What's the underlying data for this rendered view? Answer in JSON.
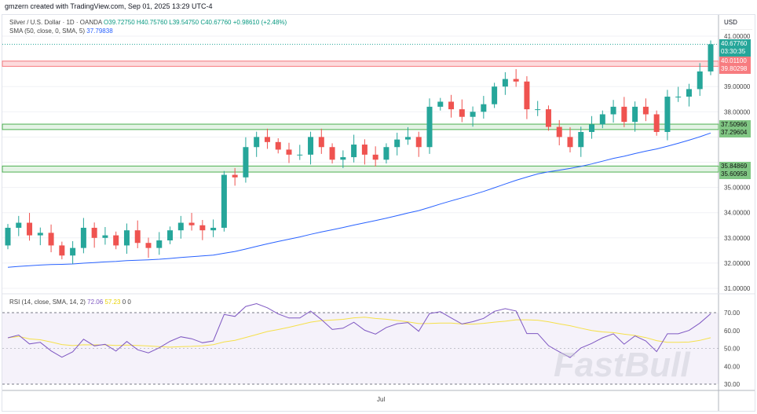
{
  "header": {
    "credit": "gmzern created with TradingView.com, Sep 01, 2025 13:29 UTC-4"
  },
  "legend": {
    "symbol": "Silver / U.S. Dollar · 1D · OANDA",
    "open": "O39.72750",
    "high": "H40.75760",
    "low": "L39.54750",
    "close": "C40.67760",
    "change": "+0.98610 (+2.48%)",
    "sma_label": "SMA (50, close, 0, SMA, 5)",
    "sma_value": "37.79838"
  },
  "rsi_legend": {
    "label": "RSI (14, close, SMA, 14, 2)",
    "rsi": "72.06",
    "rsi_sma": "57.23",
    "extra1": "0",
    "extra2": "0"
  },
  "axis": {
    "currency": "USD",
    "price_ticks": [
      "41.00000",
      "39.00000",
      "38.00000",
      "35.00000",
      "34.00000",
      "33.00000",
      "32.00000",
      "31.00000"
    ],
    "rsi_ticks": [
      "70.00",
      "60.00",
      "50.00",
      "40.00",
      "30.00"
    ],
    "x_label": "Jul"
  },
  "price_labels": {
    "last": "40.67760",
    "countdown": "03:30:35",
    "red_top": "40.01100",
    "red_bottom": "39.80298",
    "g1_top": "37.50966",
    "g1_bottom": "37.29604",
    "g2_top": "35.84869",
    "g2_bottom": "35.60958"
  },
  "watermark": "FastBull",
  "colors": {
    "up": "#26a69a",
    "down": "#ef5350",
    "sma": "#2962ff",
    "rsi": "#7e57c2",
    "rsi_sma": "#f5e04a"
  },
  "chart_data": {
    "type": "candlestick",
    "first_open": 32.7,
    "closes": [
      33.4,
      33.6,
      33.1,
      33.2,
      32.7,
      32.3,
      32.6,
      33.4,
      33.0,
      33.1,
      32.7,
      33.3,
      32.8,
      32.6,
      32.9,
      33.3,
      33.6,
      33.5,
      33.3,
      33.4,
      35.5,
      35.4,
      36.6,
      37.0,
      36.8,
      36.5,
      36.3,
      36.3,
      37.0,
      36.6,
      36.1,
      36.2,
      36.7,
      36.3,
      36.1,
      36.6,
      36.9,
      37.0,
      36.6,
      38.2,
      38.4,
      38.1,
      37.8,
      38.0,
      38.3,
      39.0,
      39.3,
      39.2,
      38.1,
      38.1,
      37.4,
      37.0,
      36.6,
      37.2,
      37.5,
      37.9,
      38.2,
      37.6,
      38.2,
      37.9,
      37.2,
      38.6,
      38.6,
      38.9,
      39.6,
      40.6776
    ],
    "ylim": [
      30.6,
      41.4
    ],
    "zones": [
      {
        "from": 39.80298,
        "to": 40.011,
        "color": "red"
      },
      {
        "from": 37.29604,
        "to": 37.50966,
        "color": "green"
      },
      {
        "from": 35.60958,
        "to": 35.84869,
        "color": "green"
      }
    ],
    "rsi_ylim": [
      30,
      70
    ]
  }
}
